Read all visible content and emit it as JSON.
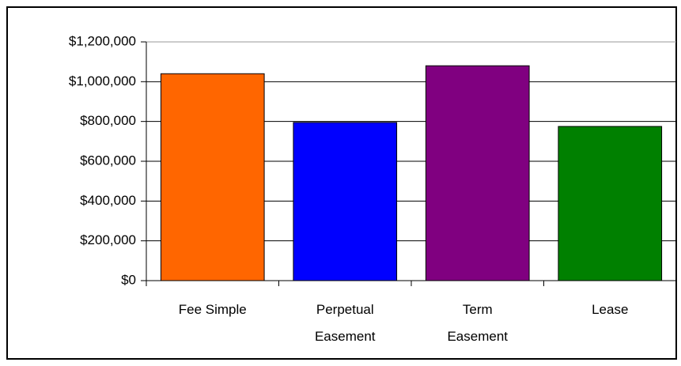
{
  "chart_data": {
    "type": "bar",
    "categories": [
      "Fee Simple",
      "Perpetual Easement",
      "Term Easement",
      "Lease"
    ],
    "values": [
      1040000,
      795000,
      1080000,
      775000
    ],
    "colors": [
      "#ff6600",
      "#0000ff",
      "#800080",
      "#008000"
    ],
    "ylim": [
      0,
      1200000
    ],
    "yticks": [
      {
        "value": 0,
        "label": "$0"
      },
      {
        "value": 200000,
        "label": "$200,000"
      },
      {
        "value": 400000,
        "label": "$400,000"
      },
      {
        "value": 600000,
        "label": "$600,000"
      },
      {
        "value": 800000,
        "label": "$800,000"
      },
      {
        "value": 1000000,
        "label": "$1,000,000"
      },
      {
        "value": 1200000,
        "label": "$1,200,000"
      }
    ],
    "grid": true
  }
}
